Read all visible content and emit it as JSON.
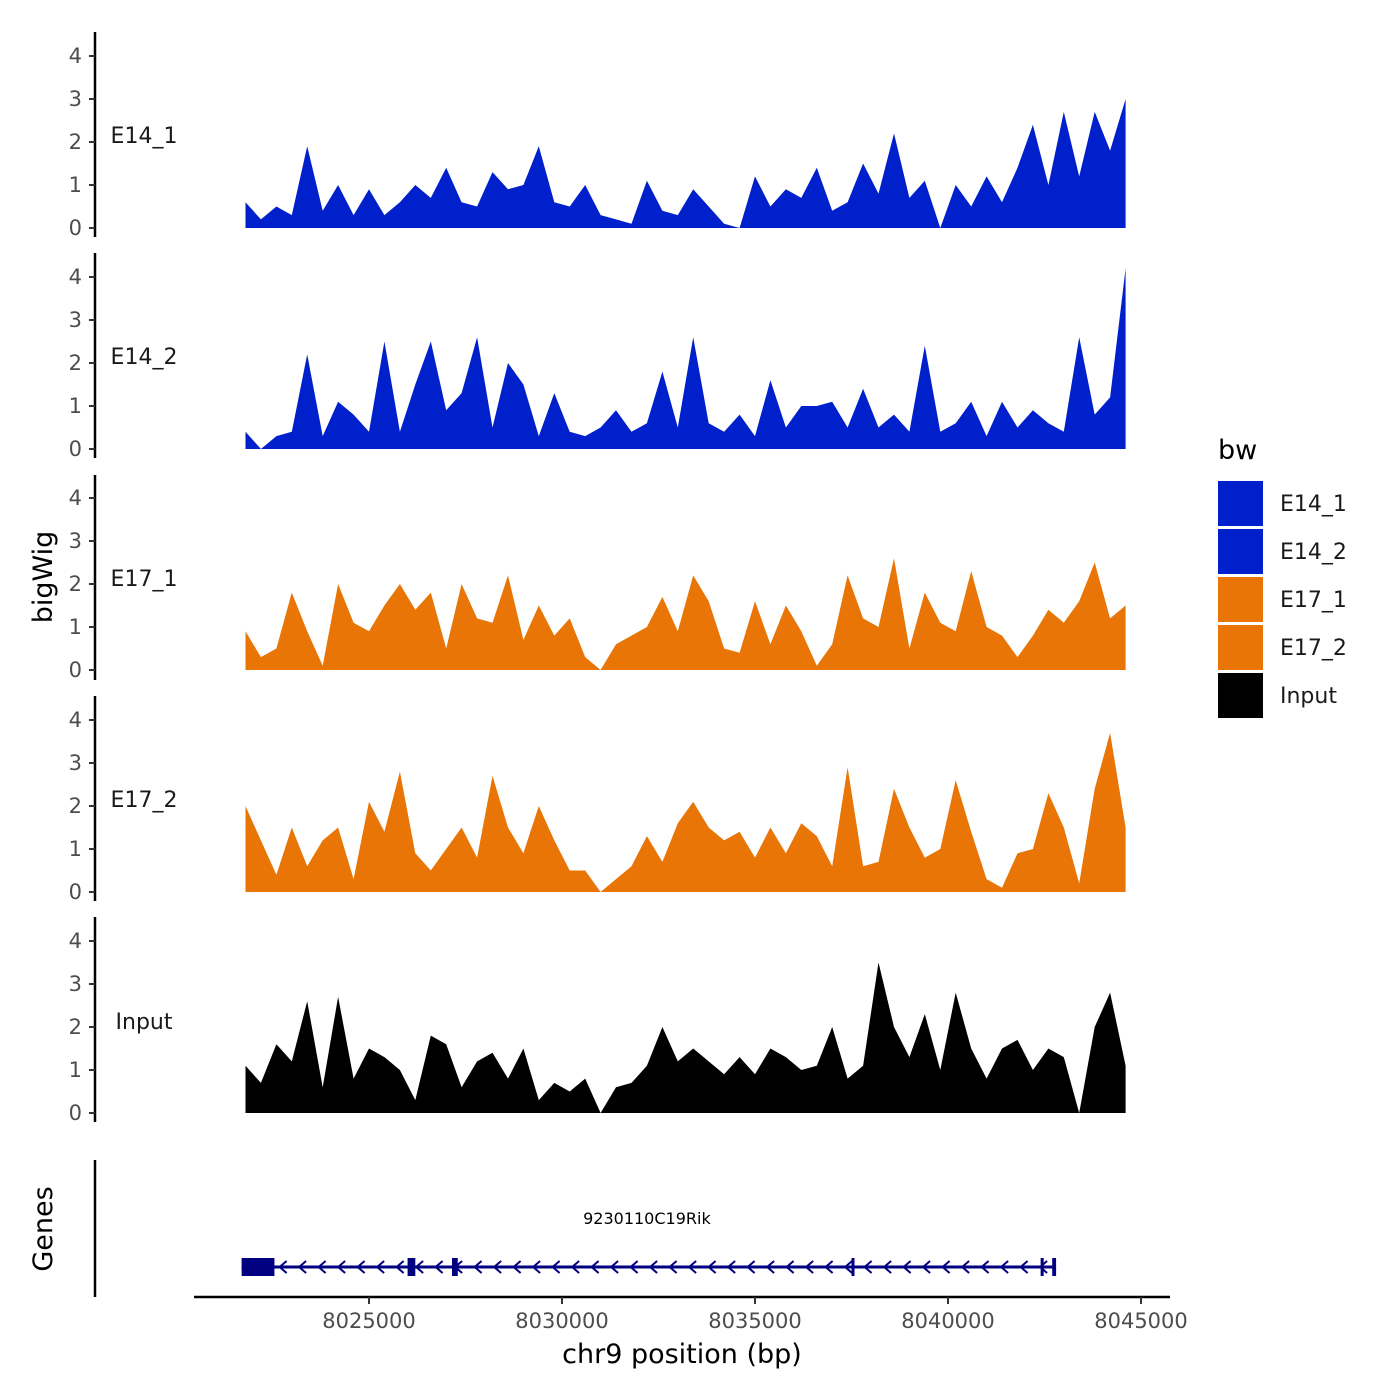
{
  "chart_data": {
    "type": "area",
    "chromosome": "chr9",
    "xlabel": "chr9 position (bp)",
    "ylabel": "bigWig",
    "genes_label": "Genes",
    "xlim": [
      8021000,
      8046000
    ],
    "x_ticks": [
      8025000,
      8030000,
      8035000,
      8040000,
      8045000
    ],
    "x_tick_labels": [
      "8025000",
      "8030000",
      "8035000",
      "8040000",
      "8045000"
    ],
    "ylim": [
      0,
      4.5
    ],
    "y_ticks": [
      0,
      1,
      2,
      3,
      4
    ],
    "y_tick_labels": [
      "0",
      "1",
      "2",
      "3",
      "4"
    ],
    "legend": {
      "title": "bw",
      "position": "right",
      "entries": [
        {
          "label": "E14_1",
          "color": "#0020CC"
        },
        {
          "label": "E14_2",
          "color": "#0020CC"
        },
        {
          "label": "E17_1",
          "color": "#E87506"
        },
        {
          "label": "E17_2",
          "color": "#E87506"
        },
        {
          "label": "Input",
          "color": "#000000"
        }
      ]
    },
    "x": [
      8021800,
      8022200,
      8022600,
      8023000,
      8023400,
      8023800,
      8024200,
      8024600,
      8025000,
      8025400,
      8025800,
      8026200,
      8026600,
      8027000,
      8027400,
      8027800,
      8028200,
      8028600,
      8029000,
      8029400,
      8029800,
      8030200,
      8030600,
      8031000,
      8031400,
      8031800,
      8032200,
      8032600,
      8033000,
      8033400,
      8033800,
      8034200,
      8034600,
      8035000,
      8035400,
      8035800,
      8036200,
      8036600,
      8037000,
      8037400,
      8037800,
      8038200,
      8038600,
      8039000,
      8039400,
      8039800,
      8040200,
      8040600,
      8041000,
      8041400,
      8041800,
      8042200,
      8042600,
      8043000,
      8043400,
      8043800,
      8044200,
      8044600
    ],
    "series": [
      {
        "name": "E14_1",
        "color": "#0020CC",
        "values": [
          0.6,
          0.2,
          0.5,
          0.3,
          1.9,
          0.4,
          1.0,
          0.3,
          0.9,
          0.3,
          0.6,
          1.0,
          0.7,
          1.4,
          0.6,
          0.5,
          1.3,
          0.9,
          1.0,
          1.9,
          0.6,
          0.5,
          1.0,
          0.3,
          0.2,
          0.1,
          1.1,
          0.4,
          0.3,
          0.9,
          0.5,
          0.1,
          0.0,
          1.2,
          0.5,
          0.9,
          0.7,
          1.4,
          0.4,
          0.6,
          1.5,
          0.8,
          2.2,
          0.7,
          1.1,
          0.0,
          1.0,
          0.5,
          1.2,
          0.6,
          1.4,
          2.4,
          1.0,
          2.7,
          1.2,
          2.7,
          1.8,
          3.0
        ]
      },
      {
        "name": "E14_2",
        "color": "#0020CC",
        "values": [
          0.4,
          0.0,
          0.3,
          0.4,
          2.2,
          0.3,
          1.1,
          0.8,
          0.4,
          2.5,
          0.4,
          1.5,
          2.5,
          0.9,
          1.3,
          2.6,
          0.5,
          2.0,
          1.5,
          0.3,
          1.3,
          0.4,
          0.3,
          0.5,
          0.9,
          0.4,
          0.6,
          1.8,
          0.5,
          2.6,
          0.6,
          0.4,
          0.8,
          0.3,
          1.6,
          0.5,
          1.0,
          1.0,
          1.1,
          0.5,
          1.4,
          0.5,
          0.8,
          0.4,
          2.4,
          0.4,
          0.6,
          1.1,
          0.3,
          1.1,
          0.5,
          0.9,
          0.6,
          0.4,
          2.6,
          0.8,
          1.2,
          4.2
        ]
      },
      {
        "name": "E17_1",
        "color": "#E87506",
        "values": [
          0.9,
          0.3,
          0.5,
          1.8,
          0.9,
          0.1,
          2.0,
          1.1,
          0.9,
          1.5,
          2.0,
          1.4,
          1.8,
          0.5,
          2.0,
          1.2,
          1.1,
          2.2,
          0.7,
          1.5,
          0.8,
          1.2,
          0.3,
          0.0,
          0.6,
          0.8,
          1.0,
          1.7,
          0.9,
          2.2,
          1.6,
          0.5,
          0.4,
          1.6,
          0.6,
          1.5,
          0.9,
          0.1,
          0.6,
          2.2,
          1.2,
          1.0,
          2.6,
          0.5,
          1.8,
          1.1,
          0.9,
          2.3,
          1.0,
          0.8,
          0.3,
          0.8,
          1.4,
          1.1,
          1.6,
          2.5,
          1.2,
          1.5
        ]
      },
      {
        "name": "E17_2",
        "color": "#E87506",
        "values": [
          2.0,
          1.2,
          0.4,
          1.5,
          0.6,
          1.2,
          1.5,
          0.3,
          2.1,
          1.4,
          2.8,
          0.9,
          0.5,
          1.0,
          1.5,
          0.8,
          2.7,
          1.5,
          0.9,
          2.0,
          1.2,
          0.5,
          0.5,
          0.0,
          0.3,
          0.6,
          1.3,
          0.7,
          1.6,
          2.1,
          1.5,
          1.2,
          1.4,
          0.8,
          1.5,
          0.9,
          1.6,
          1.3,
          0.6,
          2.9,
          0.6,
          0.7,
          2.4,
          1.5,
          0.8,
          1.0,
          2.6,
          1.4,
          0.3,
          0.1,
          0.9,
          1.0,
          2.3,
          1.5,
          0.2,
          2.4,
          3.7,
          1.5
        ]
      },
      {
        "name": "Input",
        "color": "#000000",
        "values": [
          1.1,
          0.7,
          1.6,
          1.2,
          2.6,
          0.6,
          2.7,
          0.8,
          1.5,
          1.3,
          1.0,
          0.3,
          1.8,
          1.6,
          0.6,
          1.2,
          1.4,
          0.8,
          1.5,
          0.3,
          0.7,
          0.5,
          0.8,
          0.0,
          0.6,
          0.7,
          1.1,
          2.0,
          1.2,
          1.5,
          1.2,
          0.9,
          1.3,
          0.9,
          1.5,
          1.3,
          1.0,
          1.1,
          2.0,
          0.8,
          1.1,
          3.5,
          2.0,
          1.3,
          2.3,
          1.0,
          2.8,
          1.5,
          0.8,
          1.5,
          1.7,
          1.0,
          1.5,
          1.3,
          0.0,
          2.0,
          2.8,
          1.1
        ]
      }
    ],
    "gene": {
      "name": "9230110C19Rik",
      "start": 8021700,
      "end": 8042800,
      "strand": "-",
      "color": "#000080",
      "exons": [
        [
          8021700,
          8022550
        ],
        [
          8026000,
          8026200
        ],
        [
          8027150,
          8027300
        ],
        [
          8037500,
          8037550
        ],
        [
          8042400,
          8042450
        ],
        [
          8042700,
          8042800
        ]
      ]
    }
  }
}
